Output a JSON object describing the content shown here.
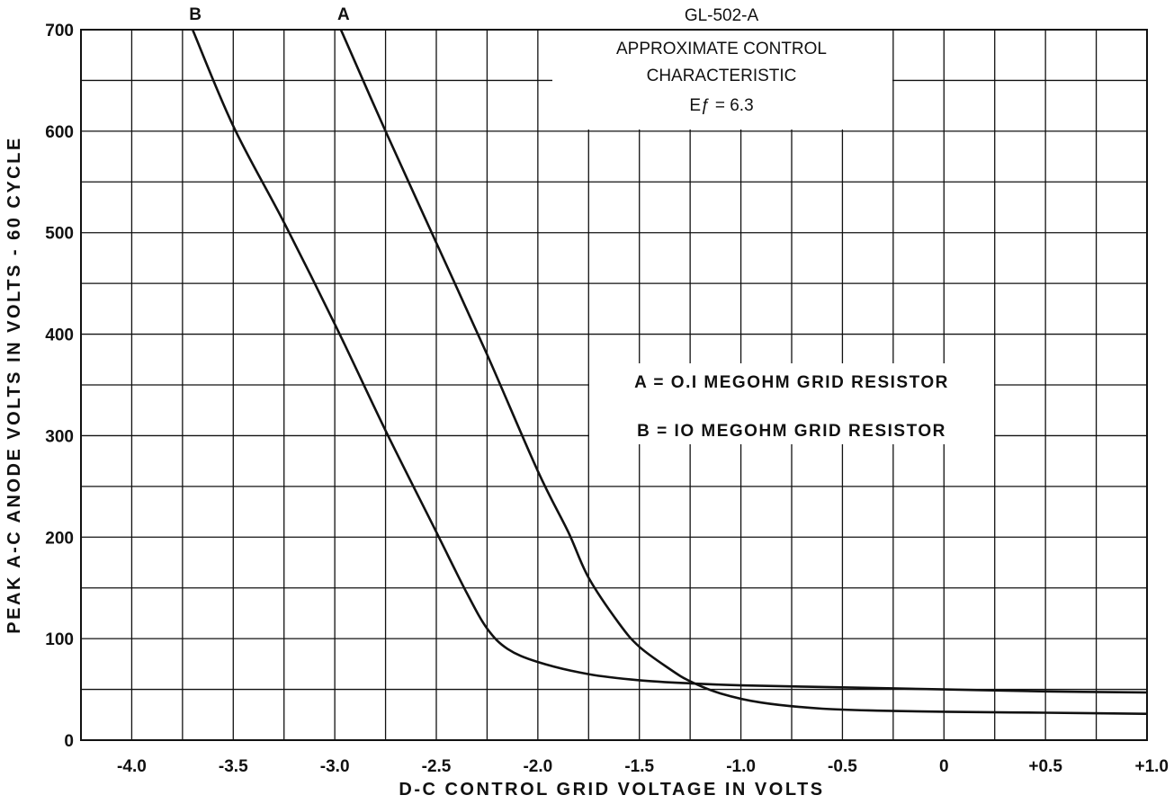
{
  "chart_data": {
    "type": "line",
    "title": [
      "GL-502-A",
      "APPROXIMATE CONTROL",
      "CHARACTERISTIC",
      "Eƒ = 6.3"
    ],
    "xlabel": "D-C CONTROL GRID VOLTAGE IN VOLTS",
    "ylabel": "PEAK A-C ANODE VOLTS IN VOLTS - 60 CYCLE",
    "xlim": [
      -4.25,
      1.0
    ],
    "ylim": [
      0,
      700
    ],
    "x_ticks": [
      -4.0,
      -3.5,
      -3.0,
      -2.5,
      -2.0,
      -1.5,
      -1.0,
      -0.5,
      0,
      0.5,
      1.0
    ],
    "x_tick_labels": [
      "-4.0",
      "-3.5",
      "-3.0",
      "-2.5",
      "-2.0",
      "-1.5",
      "-1.0",
      "-0.5",
      "0",
      "+0.5",
      "+1.0"
    ],
    "y_ticks": [
      0,
      100,
      200,
      300,
      400,
      500,
      600,
      700
    ],
    "y_tick_labels": [
      "0",
      "100",
      "200",
      "300",
      "400",
      "500",
      "600",
      "700"
    ],
    "grid": true,
    "legend_lines": [
      "A = O.I MEGOHM GRID RESISTOR",
      "B = IO MEGOHM GRID RESISTOR"
    ],
    "series": [
      {
        "name": "A",
        "x": [
          -2.97,
          -2.75,
          -2.5,
          -2.25,
          -2.0,
          -1.85,
          -1.75,
          -1.6,
          -1.5,
          -1.35,
          -1.25,
          -1.1,
          -0.9,
          -0.6,
          -0.3,
          0.0,
          0.5,
          1.0
        ],
        "y": [
          700,
          600,
          490,
          380,
          265,
          205,
          160,
          115,
          92,
          70,
          58,
          46,
          37,
          31,
          29,
          28,
          27,
          26
        ]
      },
      {
        "name": "B",
        "x": [
          -3.7,
          -3.5,
          -3.25,
          -3.0,
          -2.75,
          -2.5,
          -2.35,
          -2.25,
          -2.15,
          -2.0,
          -1.75,
          -1.5,
          -1.25,
          -1.0,
          -0.5,
          0.0,
          0.5,
          1.0
        ],
        "y": [
          700,
          605,
          510,
          410,
          305,
          205,
          145,
          110,
          90,
          77,
          65,
          59,
          56,
          54,
          52,
          50,
          48,
          47
        ]
      }
    ]
  }
}
